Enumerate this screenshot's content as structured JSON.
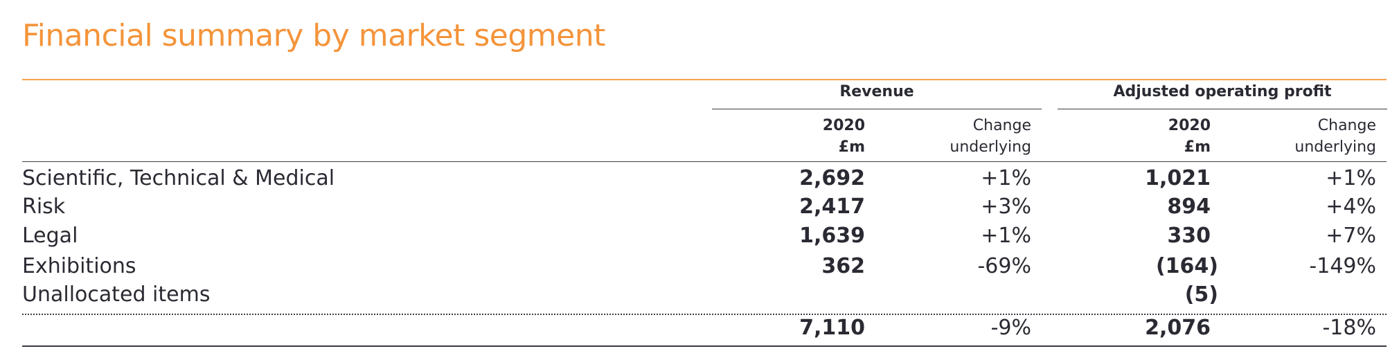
{
  "title": "Financial summary by market segment",
  "colors": {
    "accent": "#f4943a",
    "text": "#2a2a33"
  },
  "groups": {
    "revenue": "Revenue",
    "aop": "Adjusted operating profit"
  },
  "columns": {
    "rev_year": {
      "line1": "2020",
      "line2": "£m"
    },
    "rev_change": {
      "line1": "Change",
      "line2": "underlying"
    },
    "aop_year": {
      "line1": "2020",
      "line2": "£m"
    },
    "aop_change": {
      "line1": "Change",
      "line2": "underlying"
    }
  },
  "rows": [
    {
      "label": "Scientific, Technical & Medical",
      "rev": "2,692",
      "rev_chg": "+1%",
      "aop": "1,021",
      "aop_chg": "+1%"
    },
    {
      "label": "Risk",
      "rev": "2,417",
      "rev_chg": "+3%",
      "aop": "894",
      "aop_chg": "+4%"
    },
    {
      "label": "Legal",
      "rev": "1,639",
      "rev_chg": "+1%",
      "aop": "330",
      "aop_chg": "+7%"
    },
    {
      "label": "Exhibitions",
      "rev": "362",
      "rev_chg": "-69%",
      "aop": "(164)",
      "aop_chg": "-149%"
    },
    {
      "label": "Unallocated items",
      "rev": "",
      "rev_chg": "",
      "aop": "(5)",
      "aop_chg": ""
    }
  ],
  "total": {
    "rev": "7,110",
    "rev_chg": "-9%",
    "aop": "2,076",
    "aop_chg": "-18%"
  }
}
